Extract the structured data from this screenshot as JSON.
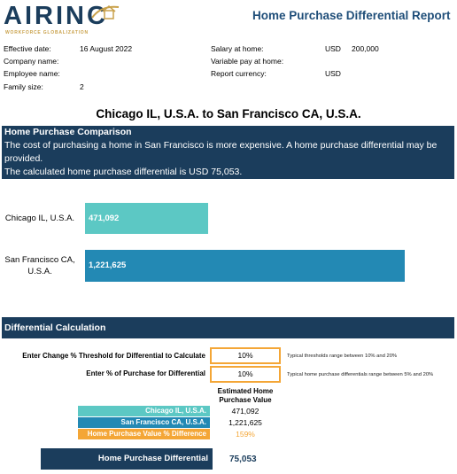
{
  "header": {
    "logo": "AIRINC",
    "logo_tagline": "WORKFORCE GLOBALIZATION",
    "title": "Home Purchase Differential Report"
  },
  "info": {
    "left": [
      {
        "label": "Effective date:",
        "value": "16 August 2022"
      },
      {
        "label": "Company name:"
      },
      {
        "label": "Employee name:"
      },
      {
        "label": "Family size:",
        "value": "2"
      }
    ],
    "right": [
      {
        "label": "Salary at home:",
        "currency": "USD",
        "value": "200,000"
      },
      {
        "label": "Variable pay at home:"
      },
      {
        "label": "Report currency:",
        "currency": "USD"
      }
    ]
  },
  "route_title": "Chicago IL, U.S.A. to San Francisco CA, U.S.A.",
  "comparison": {
    "heading": "Home Purchase Comparison",
    "text": [
      "The cost of purchasing a home in San Francisco is more expensive.  A home purchase differential may be provided.",
      "The calculated home purchase differential is USD 75,053."
    ]
  },
  "bars": [
    {
      "label": "Chicago IL, U.S.A.",
      "value": 471092,
      "value_label": "471,092",
      "color": "#5cc8c4"
    },
    {
      "label": "San Francisco CA, U.S.A.",
      "value": 1221625,
      "value_label": "1,221,625",
      "color": "#2389b4"
    }
  ],
  "differential": {
    "heading": "Differential Calculation",
    "inputs": [
      {
        "label": "Enter Change % Threshold for Differential to Calculate",
        "value": "10%",
        "note": "Typical thresholds range between 10% and 20%"
      },
      {
        "label": "Enter % of Purchase for Differential",
        "value": "10%",
        "note": "Typical home purchase differentials range between 5% and 20%"
      }
    ],
    "column_header": "Estimated Home Purchase Value",
    "rows": [
      {
        "label": "Chicago IL, U.S.A.",
        "value": "471,092"
      },
      {
        "label": "San Francisco CA, U.S.A.",
        "value": "1,221,625"
      },
      {
        "label": "Home Purchase Value % Difference",
        "value": "159%"
      }
    ],
    "result": {
      "label": "Home Purchase Differential",
      "value": "75,053"
    }
  }
}
